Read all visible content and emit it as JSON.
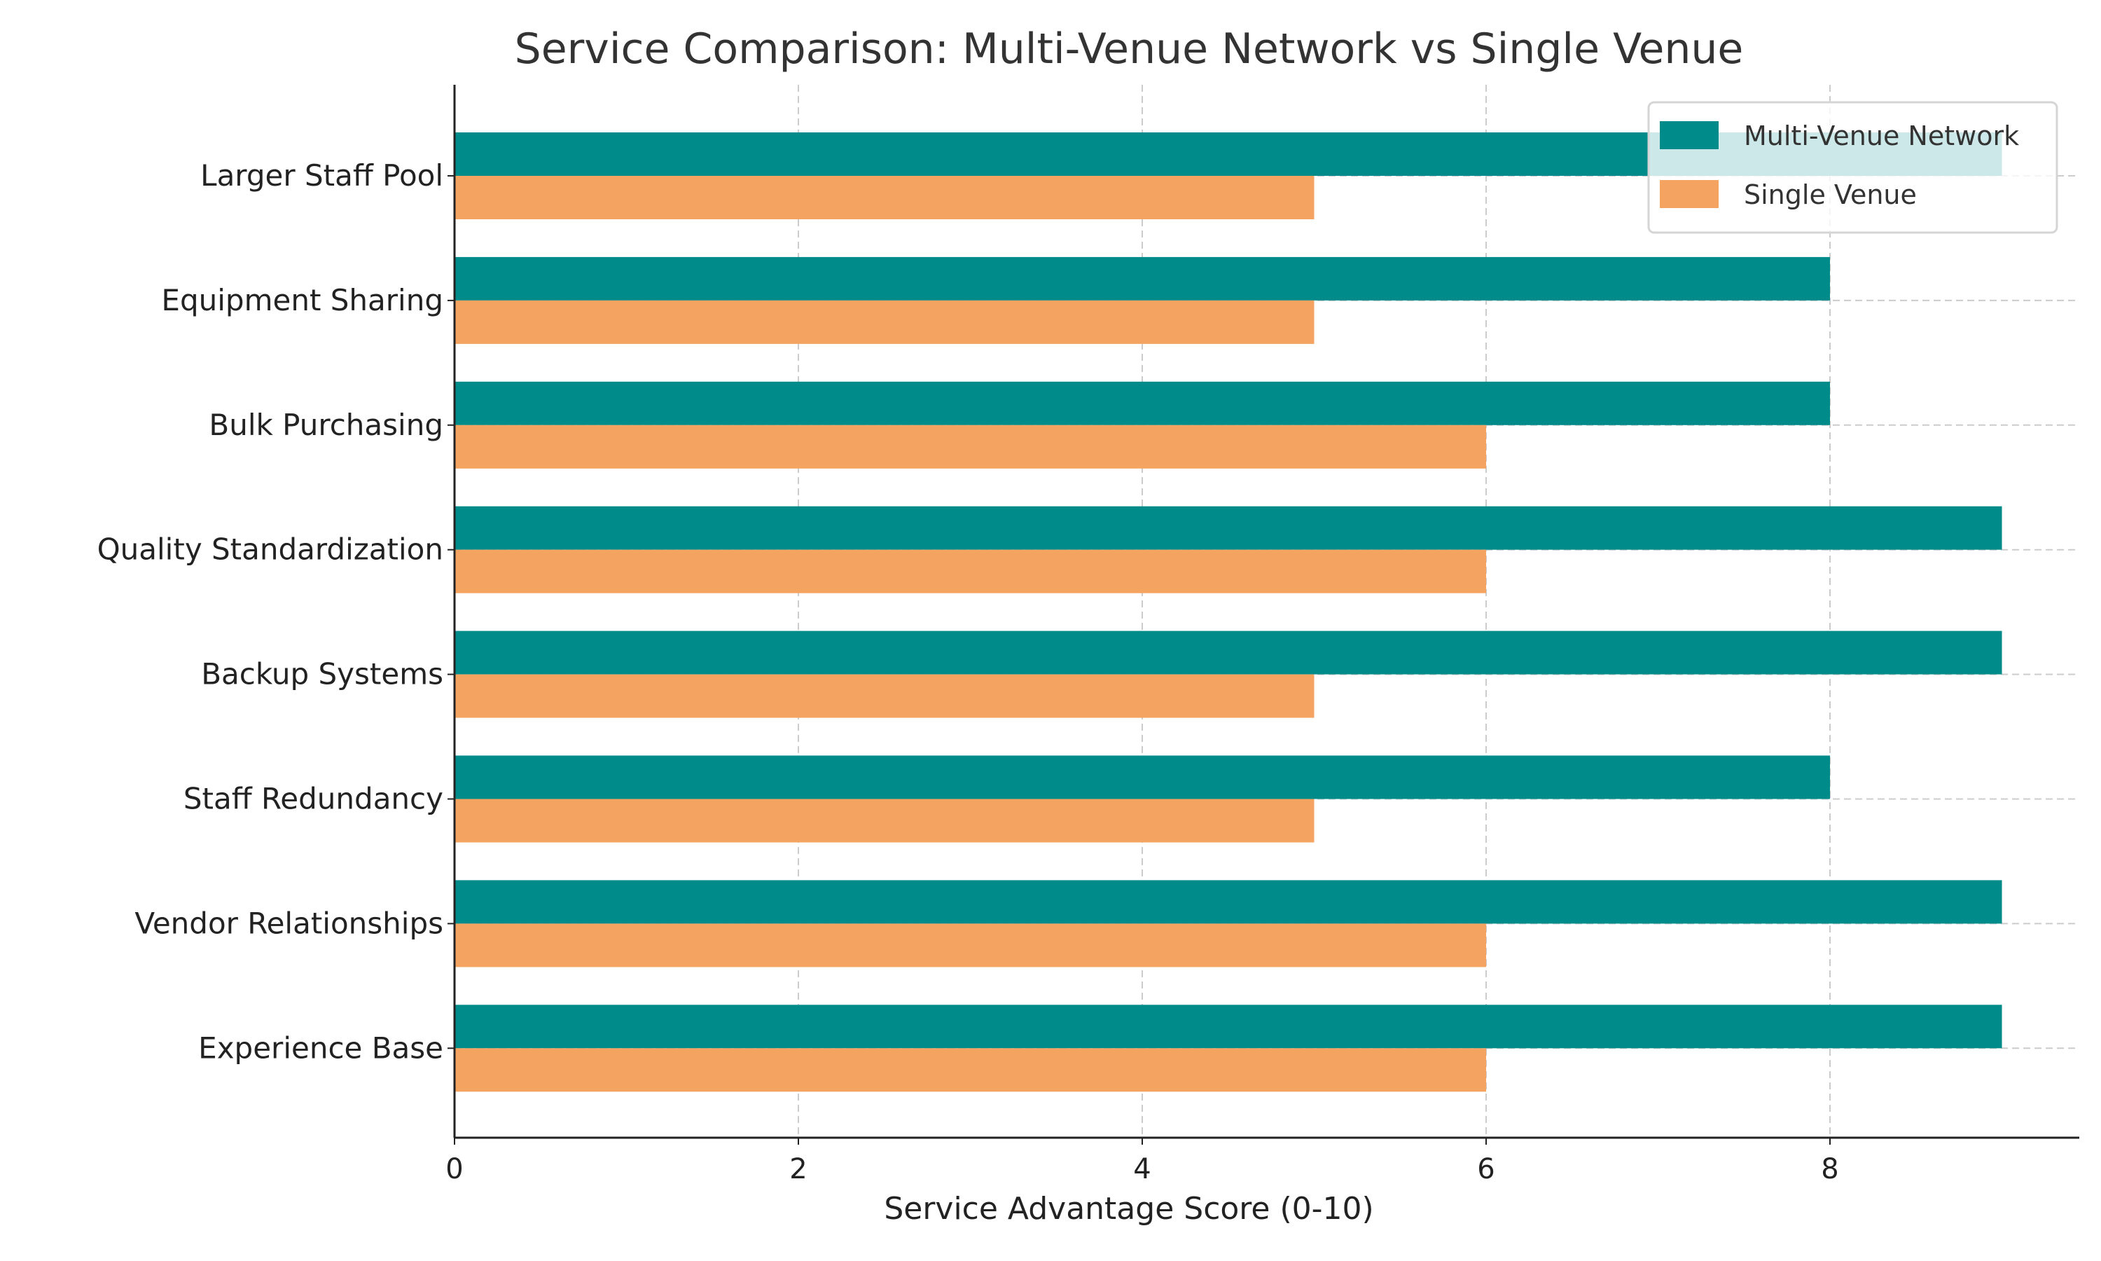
{
  "chart_data": {
    "type": "bar",
    "orientation": "horizontal",
    "title": "Service Comparison: Multi-Venue Network vs Single Venue",
    "xlabel": "Service Advantage Score (0-10)",
    "ylabel": "",
    "xlim": [
      0,
      9.45
    ],
    "xticks": [
      "0",
      "2",
      "4",
      "6",
      "8"
    ],
    "grid": true,
    "legend_position": "top-right",
    "categories": [
      "Larger Staff Pool",
      "Equipment Sharing",
      "Bulk Purchasing",
      "Quality Standardization",
      "Backup Systems",
      "Staff Redundancy",
      "Vendor Relationships",
      "Experience Base"
    ],
    "series": [
      {
        "name": "Multi-Venue Network",
        "color": "#008b8b",
        "values": [
          9,
          8,
          8,
          9,
          9,
          8,
          9,
          9
        ]
      },
      {
        "name": "Single Venue",
        "color": "#f4a460",
        "values": [
          5,
          5,
          6,
          6,
          5,
          5,
          6,
          6
        ]
      }
    ]
  }
}
